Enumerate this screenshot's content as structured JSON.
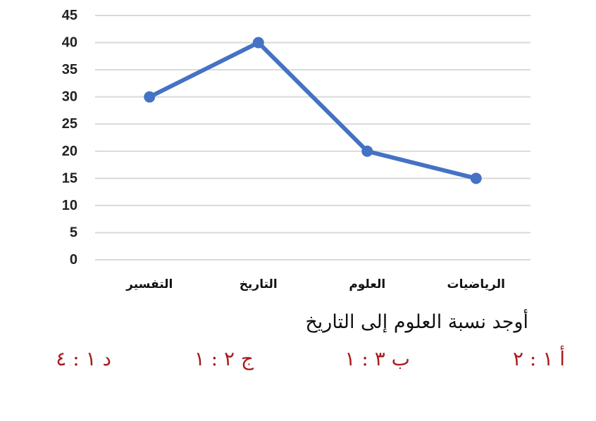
{
  "chart_data": {
    "type": "line",
    "categories": [
      "التفسير",
      "التاريخ",
      "العلوم",
      "الرياضيات"
    ],
    "series": [
      {
        "values": [
          30,
          40,
          20,
          15
        ],
        "color": "#4472C4"
      }
    ],
    "yticks": [
      "0",
      "5",
      "10",
      "15",
      "20",
      "25",
      "30",
      "35",
      "40",
      "45"
    ],
    "ylim": [
      0,
      45
    ],
    "grid": true,
    "gridColor": "#d9d9d9"
  },
  "question": "أوجد نسبة العلوم إلى التاريخ",
  "options": [
    {
      "id": "a",
      "label": "أ ١ : ٢"
    },
    {
      "id": "b",
      "label": "ب ٣ : ١"
    },
    {
      "id": "c",
      "label": "ج ٢ : ١"
    },
    {
      "id": "d",
      "label": "د ١ : ٤"
    }
  ]
}
